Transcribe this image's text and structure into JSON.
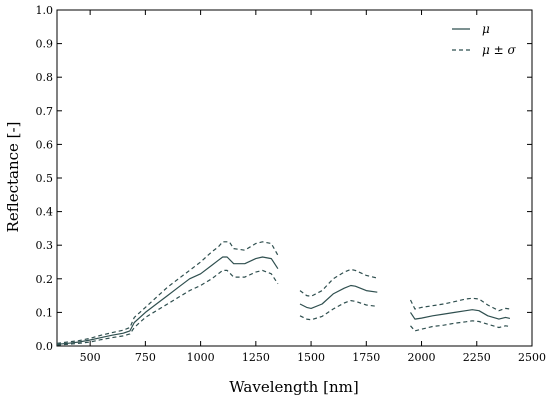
{
  "chart_data": {
    "type": "line",
    "title": "",
    "xlabel": "Wavelength [nm]",
    "ylabel": "Reflectance [-]",
    "xlim": [
      350,
      2500
    ],
    "ylim": [
      0.0,
      1.0
    ],
    "xticks": [
      500,
      750,
      1000,
      1250,
      1500,
      1750,
      2000,
      2250,
      2500
    ],
    "xtick_labels": [
      "500",
      "750",
      "1000",
      "1250",
      "1500",
      "1750",
      "2000",
      "2250",
      "2500"
    ],
    "yticks": [
      0.0,
      0.1,
      0.2,
      0.3,
      0.4,
      0.5,
      0.6,
      0.7,
      0.8,
      0.9,
      1.0
    ],
    "ytick_labels": [
      "0.0",
      "0.1",
      "0.2",
      "0.3",
      "0.4",
      "0.5",
      "0.6",
      "0.7",
      "0.8",
      "0.9",
      "1.0"
    ],
    "grid": false,
    "legend_position": "top-right",
    "legend": [
      {
        "label": "μ",
        "style": "solid"
      },
      {
        "label": "μ ± σ",
        "style": "dashed"
      }
    ],
    "color": "#2f4f4f",
    "series": [
      {
        "name": "μ",
        "style": "solid",
        "segments": [
          [
            [
              350,
              0.005
            ],
            [
              400,
              0.008
            ],
            [
              450,
              0.012
            ],
            [
              500,
              0.018
            ],
            [
              550,
              0.025
            ],
            [
              600,
              0.032
            ],
            [
              650,
              0.038
            ],
            [
              680,
              0.045
            ],
            [
              700,
              0.07
            ],
            [
              750,
              0.1
            ],
            [
              800,
              0.125
            ],
            [
              850,
              0.15
            ],
            [
              900,
              0.175
            ],
            [
              950,
              0.2
            ],
            [
              1000,
              0.215
            ],
            [
              1050,
              0.24
            ],
            [
              1080,
              0.255
            ],
            [
              1100,
              0.265
            ],
            [
              1120,
              0.265
            ],
            [
              1150,
              0.245
            ],
            [
              1200,
              0.245
            ],
            [
              1250,
              0.26
            ],
            [
              1280,
              0.265
            ],
            [
              1320,
              0.26
            ],
            [
              1350,
              0.23
            ]
          ],
          [
            [
              1450,
              0.125
            ],
            [
              1480,
              0.115
            ],
            [
              1500,
              0.112
            ],
            [
              1550,
              0.125
            ],
            [
              1600,
              0.155
            ],
            [
              1650,
              0.172
            ],
            [
              1680,
              0.18
            ],
            [
              1700,
              0.178
            ],
            [
              1750,
              0.165
            ],
            [
              1800,
              0.16
            ]
          ],
          [
            [
              1950,
              0.1
            ],
            [
              1970,
              0.08
            ],
            [
              2000,
              0.083
            ],
            [
              2050,
              0.09
            ],
            [
              2100,
              0.095
            ],
            [
              2150,
              0.1
            ],
            [
              2200,
              0.105
            ],
            [
              2230,
              0.108
            ],
            [
              2260,
              0.105
            ],
            [
              2300,
              0.09
            ],
            [
              2350,
              0.08
            ],
            [
              2380,
              0.085
            ],
            [
              2400,
              0.082
            ]
          ]
        ]
      },
      {
        "name": "μ + σ",
        "style": "dashed",
        "segments": [
          [
            [
              350,
              0.008
            ],
            [
              400,
              0.012
            ],
            [
              450,
              0.016
            ],
            [
              500,
              0.023
            ],
            [
              550,
              0.032
            ],
            [
              600,
              0.04
            ],
            [
              650,
              0.047
            ],
            [
              680,
              0.055
            ],
            [
              700,
              0.085
            ],
            [
              750,
              0.115
            ],
            [
              800,
              0.145
            ],
            [
              850,
              0.175
            ],
            [
              900,
              0.2
            ],
            [
              950,
              0.225
            ],
            [
              1000,
              0.25
            ],
            [
              1050,
              0.28
            ],
            [
              1080,
              0.295
            ],
            [
              1100,
              0.31
            ],
            [
              1130,
              0.31
            ],
            [
              1150,
              0.29
            ],
            [
              1200,
              0.285
            ],
            [
              1250,
              0.305
            ],
            [
              1280,
              0.31
            ],
            [
              1320,
              0.305
            ],
            [
              1350,
              0.27
            ]
          ],
          [
            [
              1450,
              0.165
            ],
            [
              1480,
              0.15
            ],
            [
              1500,
              0.148
            ],
            [
              1550,
              0.165
            ],
            [
              1600,
              0.2
            ],
            [
              1650,
              0.22
            ],
            [
              1680,
              0.228
            ],
            [
              1700,
              0.225
            ],
            [
              1750,
              0.21
            ],
            [
              1800,
              0.202
            ]
          ],
          [
            [
              1950,
              0.137
            ],
            [
              1970,
              0.11
            ],
            [
              2000,
              0.115
            ],
            [
              2050,
              0.12
            ],
            [
              2100,
              0.125
            ],
            [
              2150,
              0.132
            ],
            [
              2200,
              0.14
            ],
            [
              2230,
              0.142
            ],
            [
              2260,
              0.14
            ],
            [
              2300,
              0.122
            ],
            [
              2350,
              0.105
            ],
            [
              2380,
              0.112
            ],
            [
              2400,
              0.11
            ]
          ]
        ]
      },
      {
        "name": "μ − σ",
        "style": "dashed",
        "segments": [
          [
            [
              350,
              0.003
            ],
            [
              400,
              0.005
            ],
            [
              450,
              0.008
            ],
            [
              500,
              0.012
            ],
            [
              550,
              0.019
            ],
            [
              600,
              0.025
            ],
            [
              650,
              0.03
            ],
            [
              680,
              0.036
            ],
            [
              700,
              0.055
            ],
            [
              750,
              0.085
            ],
            [
              800,
              0.105
            ],
            [
              850,
              0.125
            ],
            [
              900,
              0.145
            ],
            [
              950,
              0.165
            ],
            [
              1000,
              0.18
            ],
            [
              1050,
              0.2
            ],
            [
              1080,
              0.215
            ],
            [
              1100,
              0.225
            ],
            [
              1120,
              0.225
            ],
            [
              1150,
              0.205
            ],
            [
              1200,
              0.205
            ],
            [
              1250,
              0.22
            ],
            [
              1280,
              0.225
            ],
            [
              1320,
              0.215
            ],
            [
              1350,
              0.185
            ]
          ],
          [
            [
              1450,
              0.09
            ],
            [
              1480,
              0.08
            ],
            [
              1500,
              0.078
            ],
            [
              1550,
              0.088
            ],
            [
              1600,
              0.11
            ],
            [
              1650,
              0.128
            ],
            [
              1680,
              0.135
            ],
            [
              1700,
              0.133
            ],
            [
              1750,
              0.122
            ],
            [
              1800,
              0.118
            ]
          ],
          [
            [
              1950,
              0.06
            ],
            [
              1970,
              0.045
            ],
            [
              2000,
              0.05
            ],
            [
              2050,
              0.058
            ],
            [
              2100,
              0.062
            ],
            [
              2150,
              0.068
            ],
            [
              2200,
              0.072
            ],
            [
              2230,
              0.075
            ],
            [
              2260,
              0.073
            ],
            [
              2300,
              0.065
            ],
            [
              2350,
              0.055
            ],
            [
              2380,
              0.06
            ],
            [
              2400,
              0.058
            ]
          ]
        ]
      }
    ]
  }
}
